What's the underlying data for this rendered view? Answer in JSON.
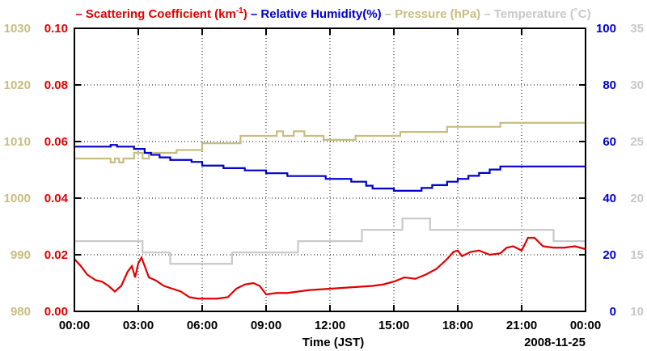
{
  "chart_data": {
    "type": "line",
    "title_parts": [
      {
        "id": "sc",
        "prefix": "– ",
        "text": "Scattering Coefficient (km",
        "sup": "-1",
        "suffix": ")",
        "color": "#e00000"
      },
      {
        "id": "rh",
        "prefix": " – ",
        "text": "Relative Humidity(%)",
        "color": "#0000cc"
      },
      {
        "id": "pr",
        "prefix": " – ",
        "text": "Pressure (hPa)",
        "color": "#c8bd80"
      },
      {
        "id": "tp",
        "prefix": " – ",
        "text": "Temperature (˚C)",
        "color": "#c8c8c8"
      }
    ],
    "xlabel": "Time (JST)",
    "date_label": "2008-11-25",
    "x_ticks": [
      "00:00",
      "03:00",
      "06:00",
      "09:00",
      "12:00",
      "15:00",
      "18:00",
      "21:00",
      "00:00"
    ],
    "xlim": [
      0,
      24
    ],
    "grid": true,
    "axes": {
      "pressure": {
        "side": "left-outer",
        "color": "#c8bd80",
        "ylim": [
          980,
          1030
        ],
        "ticks": [
          "980",
          "990",
          "1000",
          "1010",
          "1020",
          "1030"
        ]
      },
      "scattering": {
        "side": "left-inner",
        "color": "#e00000",
        "ylim": [
          0,
          0.1
        ],
        "ticks": [
          "0.00",
          "0.02",
          "0.04",
          "0.06",
          "0.08",
          "0.10"
        ]
      },
      "humidity": {
        "side": "right-inner",
        "color": "#0000cc",
        "ylim": [
          0,
          100
        ],
        "ticks": [
          "0",
          "20",
          "40",
          "60",
          "80",
          "100"
        ]
      },
      "temperature": {
        "side": "right-outer",
        "color": "#c8c8c8",
        "ylim": [
          10,
          35
        ],
        "ticks": [
          "10",
          "15",
          "20",
          "25",
          "30",
          "35"
        ]
      }
    },
    "series": [
      {
        "name": "Pressure (hPa)",
        "axis": "pressure",
        "color": "#c8bd80",
        "step": true,
        "points": [
          [
            0,
            1007
          ],
          [
            1.7,
            1007
          ],
          [
            1.7,
            1006.3
          ],
          [
            1.9,
            1006.3
          ],
          [
            1.9,
            1007
          ],
          [
            2.1,
            1007
          ],
          [
            2.1,
            1006.3
          ],
          [
            2.3,
            1006.3
          ],
          [
            2.3,
            1007
          ],
          [
            2.8,
            1007
          ],
          [
            2.8,
            1008
          ],
          [
            3.2,
            1008
          ],
          [
            3.2,
            1007
          ],
          [
            3.5,
            1007
          ],
          [
            3.5,
            1008
          ],
          [
            4.8,
            1008
          ],
          [
            4.8,
            1008.5
          ],
          [
            6,
            1008.5
          ],
          [
            6,
            1009.7
          ],
          [
            7.8,
            1009.7
          ],
          [
            7.8,
            1011
          ],
          [
            9.5,
            1011
          ],
          [
            9.5,
            1011.8
          ],
          [
            9.8,
            1011.8
          ],
          [
            9.8,
            1011
          ],
          [
            10.3,
            1011
          ],
          [
            10.3,
            1011.8
          ],
          [
            10.8,
            1011.8
          ],
          [
            10.8,
            1011
          ],
          [
            11.7,
            1011
          ],
          [
            11.7,
            1010.3
          ],
          [
            13.2,
            1010.3
          ],
          [
            13.2,
            1011
          ],
          [
            15.3,
            1011
          ],
          [
            15.3,
            1011.7
          ],
          [
            17.5,
            1011.7
          ],
          [
            17.5,
            1012.6
          ],
          [
            20,
            1012.6
          ],
          [
            20,
            1013.3
          ],
          [
            24,
            1013.3
          ]
        ]
      },
      {
        "name": "Temperature (˚C)",
        "axis": "temperature",
        "color": "#c8c8c8",
        "step": true,
        "points": [
          [
            0,
            16.2
          ],
          [
            3.2,
            16.2
          ],
          [
            3.2,
            15.2
          ],
          [
            4.5,
            15.2
          ],
          [
            4.5,
            14.2
          ],
          [
            7.4,
            14.2
          ],
          [
            7.4,
            15.2
          ],
          [
            10.5,
            15.2
          ],
          [
            10.5,
            16.2
          ],
          [
            13.5,
            16.2
          ],
          [
            13.5,
            17.2
          ],
          [
            15.4,
            17.2
          ],
          [
            15.4,
            18.2
          ],
          [
            16.7,
            18.2
          ],
          [
            16.7,
            17.2
          ],
          [
            22.5,
            17.2
          ],
          [
            22.5,
            16.2
          ],
          [
            24,
            16.2
          ]
        ]
      },
      {
        "name": "Relative Humidity(%)",
        "axis": "humidity",
        "color": "#0000cc",
        "step": true,
        "points": [
          [
            0,
            58.2
          ],
          [
            1.7,
            58.2
          ],
          [
            1.7,
            58.8
          ],
          [
            2,
            58.8
          ],
          [
            2,
            58.2
          ],
          [
            2.8,
            58.2
          ],
          [
            2.8,
            57.4
          ],
          [
            3.3,
            57.4
          ],
          [
            3.3,
            56
          ],
          [
            3.6,
            56
          ],
          [
            3.6,
            55.3
          ],
          [
            4,
            55.3
          ],
          [
            4,
            54.4
          ],
          [
            4.5,
            54.4
          ],
          [
            4.5,
            53.5
          ],
          [
            5.5,
            53.5
          ],
          [
            5.5,
            52.8
          ],
          [
            6,
            52.8
          ],
          [
            6,
            51.5
          ],
          [
            7,
            51.5
          ],
          [
            7,
            50.6
          ],
          [
            8,
            50.6
          ],
          [
            8,
            49.8
          ],
          [
            9,
            49.8
          ],
          [
            9,
            48.8
          ],
          [
            10,
            48.8
          ],
          [
            10,
            47.8
          ],
          [
            11.8,
            47.8
          ],
          [
            11.8,
            46.8
          ],
          [
            13,
            46.8
          ],
          [
            13,
            45.8
          ],
          [
            13.7,
            45.8
          ],
          [
            13.7,
            44.4
          ],
          [
            14,
            44.4
          ],
          [
            14,
            43.4
          ],
          [
            15,
            43.4
          ],
          [
            15,
            42.6
          ],
          [
            16.3,
            42.6
          ],
          [
            16.3,
            43.6
          ],
          [
            16.8,
            43.6
          ],
          [
            16.8,
            44.6
          ],
          [
            17.5,
            44.6
          ],
          [
            17.5,
            45.8
          ],
          [
            18,
            45.8
          ],
          [
            18,
            46.8
          ],
          [
            18.5,
            46.8
          ],
          [
            18.5,
            47.9
          ],
          [
            19,
            47.9
          ],
          [
            19,
            48.9
          ],
          [
            19.5,
            48.9
          ],
          [
            19.5,
            50.1
          ],
          [
            20,
            50.1
          ],
          [
            20,
            51.2
          ],
          [
            24,
            51.2
          ]
        ]
      },
      {
        "name": "Scattering Coefficient (km-1)",
        "axis": "scattering",
        "color": "#e00000",
        "step": false,
        "points": [
          [
            0,
            0.0185
          ],
          [
            0.3,
            0.016
          ],
          [
            0.6,
            0.013
          ],
          [
            1,
            0.011
          ],
          [
            1.3,
            0.0105
          ],
          [
            1.6,
            0.009
          ],
          [
            1.9,
            0.007
          ],
          [
            2.2,
            0.009
          ],
          [
            2.5,
            0.014
          ],
          [
            2.7,
            0.016
          ],
          [
            2.85,
            0.012
          ],
          [
            3,
            0.017
          ],
          [
            3.15,
            0.019
          ],
          [
            3.3,
            0.016
          ],
          [
            3.5,
            0.012
          ],
          [
            3.8,
            0.011
          ],
          [
            4.2,
            0.009
          ],
          [
            4.6,
            0.008
          ],
          [
            5,
            0.007
          ],
          [
            5.4,
            0.005
          ],
          [
            5.8,
            0.0045
          ],
          [
            6.2,
            0.0045
          ],
          [
            6.7,
            0.0045
          ],
          [
            7.2,
            0.005
          ],
          [
            7.6,
            0.008
          ],
          [
            8,
            0.0095
          ],
          [
            8.4,
            0.01
          ],
          [
            8.7,
            0.009
          ],
          [
            9,
            0.006
          ],
          [
            9.5,
            0.0065
          ],
          [
            10,
            0.0065
          ],
          [
            11,
            0.0075
          ],
          [
            12,
            0.008
          ],
          [
            13,
            0.0085
          ],
          [
            14,
            0.009
          ],
          [
            14.5,
            0.0095
          ],
          [
            15,
            0.0105
          ],
          [
            15.5,
            0.012
          ],
          [
            16,
            0.0115
          ],
          [
            16.5,
            0.013
          ],
          [
            17,
            0.015
          ],
          [
            17.5,
            0.0185
          ],
          [
            17.8,
            0.021
          ],
          [
            18,
            0.0215
          ],
          [
            18.2,
            0.0195
          ],
          [
            18.6,
            0.021
          ],
          [
            19,
            0.0215
          ],
          [
            19.5,
            0.02
          ],
          [
            20,
            0.0205
          ],
          [
            20.3,
            0.0225
          ],
          [
            20.6,
            0.023
          ],
          [
            21,
            0.0215
          ],
          [
            21.3,
            0.026
          ],
          [
            21.6,
            0.026
          ],
          [
            22,
            0.023
          ],
          [
            22.5,
            0.0225
          ],
          [
            23,
            0.0225
          ],
          [
            23.5,
            0.023
          ],
          [
            24,
            0.022
          ]
        ]
      }
    ]
  }
}
